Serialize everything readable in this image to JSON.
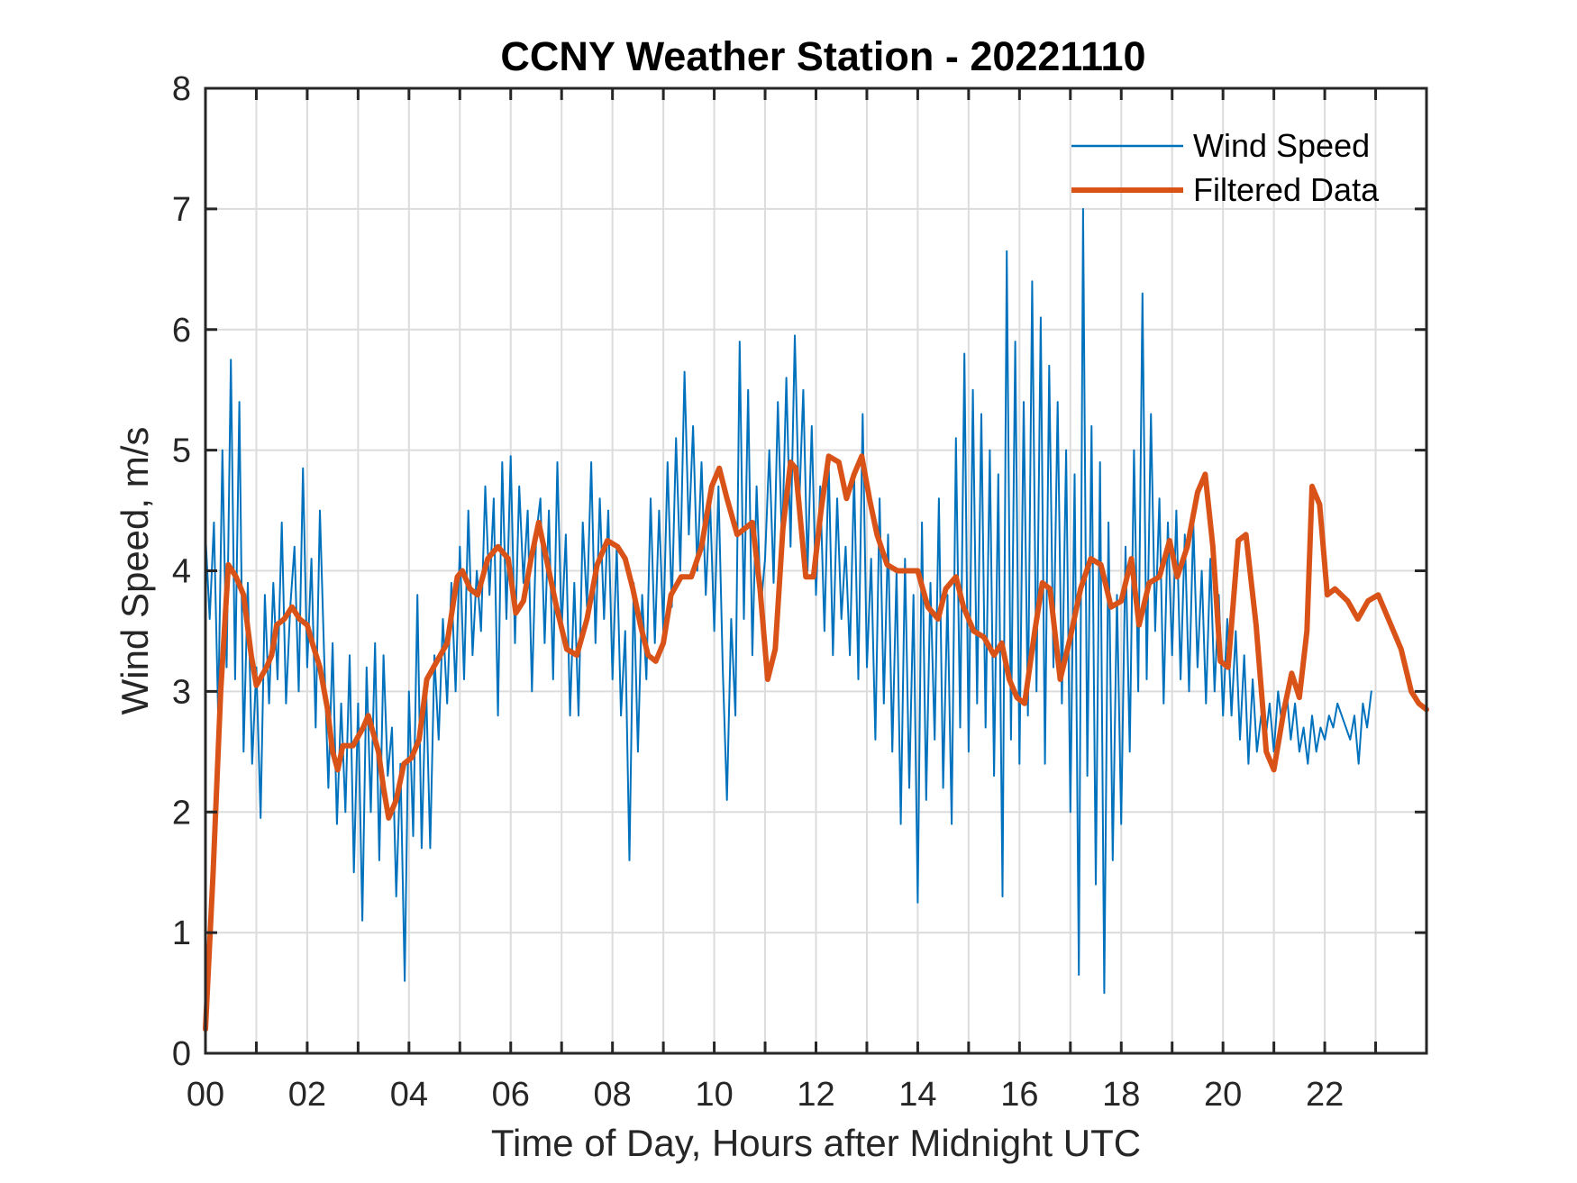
{
  "chart_data": {
    "type": "line",
    "title": "CCNY Weather Station - 20221110",
    "xlabel": "Time of Day, Hours after Midnight UTC",
    "ylabel": "Wind Speed, m/s",
    "xlim": [
      0,
      24
    ],
    "ylim": [
      0,
      8
    ],
    "grid": true,
    "xticks": [
      0,
      2,
      4,
      6,
      8,
      10,
      12,
      14,
      16,
      18,
      20,
      22
    ],
    "xtick_labels": [
      "00",
      "02",
      "04",
      "06",
      "08",
      "10",
      "12",
      "14",
      "16",
      "18",
      "20",
      "22"
    ],
    "xgrid_step_hours": 1,
    "yticks": [
      0,
      1,
      2,
      3,
      4,
      5,
      6,
      7,
      8
    ],
    "ytick_labels": [
      "0",
      "1",
      "2",
      "3",
      "4",
      "5",
      "6",
      "7",
      "8"
    ],
    "legend": {
      "placement": "top-right",
      "boxed": false,
      "entries": [
        "Wind Speed",
        "Filtered Data"
      ]
    },
    "series": [
      {
        "name": "Wind Speed",
        "color": "#0072BD",
        "x_start": 0,
        "x_step_hours": 0.0833333,
        "values": [
          4.3,
          3.6,
          4.4,
          2.8,
          5.0,
          3.2,
          5.75,
          3.1,
          5.4,
          2.5,
          3.9,
          2.4,
          3.2,
          1.95,
          3.8,
          2.9,
          3.9,
          3.1,
          4.4,
          2.9,
          3.7,
          4.2,
          3.0,
          4.85,
          3.2,
          4.1,
          2.7,
          4.5,
          3.3,
          2.2,
          3.4,
          1.9,
          2.9,
          2.0,
          3.3,
          1.5,
          2.9,
          1.1,
          3.2,
          2.0,
          3.4,
          1.6,
          3.3,
          2.3,
          2.7,
          1.3,
          2.4,
          0.6,
          3.0,
          1.8,
          3.8,
          1.7,
          3.1,
          1.7,
          3.3,
          2.6,
          3.6,
          2.9,
          3.9,
          3.0,
          4.2,
          3.1,
          4.5,
          3.3,
          4.0,
          3.5,
          4.7,
          3.8,
          4.6,
          2.8,
          4.9,
          3.6,
          4.95,
          3.4,
          4.7,
          3.9,
          4.5,
          3.0,
          4.3,
          4.6,
          3.4,
          4.5,
          3.1,
          4.9,
          3.5,
          4.3,
          2.8,
          3.9,
          2.8,
          4.4,
          3.7,
          4.9,
          3.4,
          4.6,
          3.6,
          4.5,
          3.1,
          4.2,
          2.8,
          3.5,
          1.6,
          3.9,
          2.5,
          3.8,
          3.1,
          4.6,
          3.4,
          4.5,
          3.5,
          4.9,
          3.7,
          5.1,
          4.0,
          5.65,
          4.3,
          5.2,
          4.0,
          4.9,
          3.8,
          4.6,
          3.5,
          4.7,
          3.2,
          2.1,
          3.6,
          2.8,
          5.9,
          3.6,
          5.5,
          3.3,
          4.7,
          3.7,
          4.1,
          5.0,
          3.9,
          5.4,
          4.2,
          5.6,
          4.2,
          5.95,
          4.5,
          5.5,
          4.0,
          5.2,
          3.8,
          4.7,
          3.5,
          4.9,
          3.3,
          4.6,
          3.6,
          4.2,
          3.3,
          4.8,
          3.1,
          5.3,
          3.2,
          4.1,
          2.6,
          4.6,
          2.9,
          4.3,
          2.5,
          4.0,
          1.9,
          4.1,
          2.2,
          3.8,
          1.25,
          4.4,
          2.1,
          3.9,
          2.6,
          4.6,
          2.2,
          3.8,
          1.9,
          5.1,
          2.7,
          5.8,
          2.5,
          5.5,
          2.9,
          5.3,
          2.7,
          5.0,
          2.3,
          4.8,
          1.3,
          6.65,
          2.6,
          5.9,
          2.4,
          5.4,
          2.8,
          6.4,
          3.0,
          6.1,
          2.4,
          5.7,
          3.2,
          5.4,
          2.9,
          5.0,
          2.0,
          4.8,
          0.65,
          7.0,
          2.3,
          5.2,
          1.4,
          4.9,
          0.5,
          4.4,
          1.6,
          3.8,
          1.9,
          4.2,
          2.5,
          5.0,
          3.0,
          6.3,
          3.1,
          5.3,
          3.5,
          4.6,
          2.9,
          4.4,
          3.3,
          4.5,
          3.1,
          4.3,
          3.0,
          4.4,
          3.2,
          4.0,
          2.9,
          4.1,
          3.0,
          3.8,
          2.8,
          3.6,
          2.8,
          3.5,
          2.6,
          3.3,
          2.4,
          3.1,
          2.5,
          2.8,
          2.6,
          2.9,
          2.5,
          3.0,
          2.7,
          3.0,
          2.6,
          2.9,
          2.5,
          2.7,
          2.4,
          2.8,
          2.5,
          2.7,
          2.6,
          2.8,
          2.7,
          2.9,
          2.8,
          2.7,
          2.6,
          2.8,
          2.4,
          2.9,
          2.7,
          3.0
        ]
      },
      {
        "name": "Filtered Data",
        "color": "#D95319",
        "x": [
          0.0,
          0.15,
          0.3,
          0.45,
          0.6,
          0.75,
          0.9,
          1.0,
          1.2,
          1.3,
          1.4,
          1.55,
          1.7,
          1.85,
          2.0,
          2.1,
          2.25,
          2.4,
          2.5,
          2.6,
          2.7,
          2.9,
          3.1,
          3.2,
          3.4,
          3.5,
          3.6,
          3.75,
          3.9,
          4.05,
          4.2,
          4.35,
          4.55,
          4.75,
          4.95,
          5.05,
          5.2,
          5.35,
          5.55,
          5.75,
          5.95,
          6.1,
          6.25,
          6.4,
          6.55,
          6.7,
          6.9,
          7.1,
          7.3,
          7.5,
          7.7,
          7.9,
          8.1,
          8.25,
          8.4,
          8.55,
          8.7,
          8.85,
          9.0,
          9.15,
          9.35,
          9.55,
          9.75,
          9.95,
          10.1,
          10.25,
          10.45,
          10.6,
          10.75,
          10.9,
          11.05,
          11.2,
          11.35,
          11.5,
          11.6,
          11.8,
          11.95,
          12.1,
          12.25,
          12.45,
          12.6,
          12.75,
          12.9,
          13.05,
          13.2,
          13.4,
          13.6,
          13.8,
          14.0,
          14.2,
          14.4,
          14.55,
          14.75,
          14.9,
          15.1,
          15.3,
          15.5,
          15.65,
          15.8,
          15.95,
          16.1,
          16.3,
          16.45,
          16.6,
          16.8,
          17.0,
          17.2,
          17.4,
          17.6,
          17.8,
          18.0,
          18.2,
          18.35,
          18.55,
          18.75,
          18.95,
          19.1,
          19.3,
          19.5,
          19.65,
          19.8,
          19.95,
          20.1,
          20.3,
          20.45,
          20.65,
          20.85,
          21.0,
          21.2,
          21.35,
          21.5,
          21.65,
          21.75,
          21.9,
          22.05,
          22.2,
          22.45,
          22.65,
          22.85,
          23.05,
          23.25,
          23.5,
          23.7,
          23.85,
          24.0
        ],
        "values": [
          0.2,
          1.5,
          3.0,
          4.05,
          3.95,
          3.8,
          3.3,
          3.05,
          3.2,
          3.3,
          3.55,
          3.6,
          3.7,
          3.6,
          3.55,
          3.4,
          3.2,
          2.85,
          2.5,
          2.35,
          2.55,
          2.55,
          2.7,
          2.8,
          2.5,
          2.2,
          1.95,
          2.1,
          2.4,
          2.45,
          2.6,
          3.1,
          3.25,
          3.4,
          3.95,
          4.0,
          3.85,
          3.8,
          4.1,
          4.2,
          4.1,
          3.65,
          3.75,
          4.1,
          4.4,
          4.1,
          3.7,
          3.35,
          3.3,
          3.6,
          4.05,
          4.25,
          4.2,
          4.1,
          3.85,
          3.55,
          3.3,
          3.25,
          3.4,
          3.8,
          3.95,
          3.95,
          4.2,
          4.7,
          4.85,
          4.6,
          4.3,
          4.35,
          4.4,
          3.85,
          3.1,
          3.35,
          4.35,
          4.9,
          4.85,
          3.95,
          3.95,
          4.5,
          4.95,
          4.9,
          4.6,
          4.8,
          4.95,
          4.6,
          4.3,
          4.05,
          4.0,
          4.0,
          4.0,
          3.7,
          3.6,
          3.85,
          3.95,
          3.7,
          3.5,
          3.45,
          3.3,
          3.4,
          3.1,
          2.95,
          2.9,
          3.5,
          3.9,
          3.85,
          3.1,
          3.45,
          3.85,
          4.1,
          4.05,
          3.7,
          3.75,
          4.1,
          3.55,
          3.9,
          3.95,
          4.25,
          3.95,
          4.2,
          4.65,
          4.8,
          4.2,
          3.25,
          3.2,
          4.25,
          4.3,
          3.55,
          2.5,
          2.35,
          2.85,
          3.15,
          2.95,
          3.5,
          4.7,
          4.55,
          3.8,
          3.85,
          3.75,
          3.6,
          3.75,
          3.8,
          3.6,
          3.35,
          3.0,
          2.9,
          2.85
        ]
      }
    ]
  }
}
